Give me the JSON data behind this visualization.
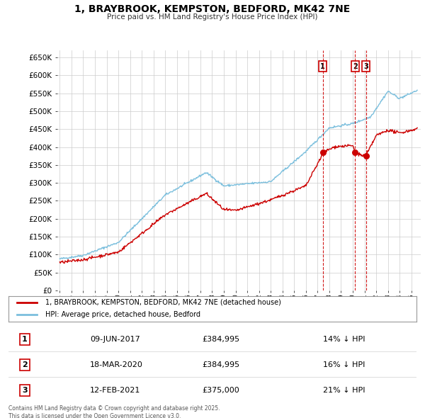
{
  "title": "1, BRAYBROOK, KEMPSTON, BEDFORD, MK42 7NE",
  "subtitle": "Price paid vs. HM Land Registry's House Price Index (HPI)",
  "legend_line1": "1, BRAYBROOK, KEMPSTON, BEDFORD, MK42 7NE (detached house)",
  "legend_line2": "HPI: Average price, detached house, Bedford",
  "transactions": [
    {
      "num": 1,
      "date": "09-JUN-2017",
      "price": "£384,995",
      "hpi": "14% ↓ HPI",
      "x": 2017.44
    },
    {
      "num": 2,
      "date": "18-MAR-2020",
      "price": "£384,995",
      "hpi": "16% ↓ HPI",
      "x": 2020.21
    },
    {
      "num": 3,
      "date": "12-FEB-2021",
      "price": "£375,000",
      "hpi": "21% ↓ HPI",
      "x": 2021.12
    }
  ],
  "transaction_prices": [
    384995,
    384995,
    375000
  ],
  "footnote": "Contains HM Land Registry data © Crown copyright and database right 2025.\nThis data is licensed under the Open Government Licence v3.0.",
  "hpi_color": "#7bbfdd",
  "price_color": "#cc0000",
  "marker_color": "#cc0000",
  "vline_color": "#cc0000",
  "background_chart": "#ffffff",
  "background_fig": "#ffffff",
  "grid_color": "#cccccc",
  "ylim": [
    0,
    670000
  ],
  "yticks": [
    0,
    50000,
    100000,
    150000,
    200000,
    250000,
    300000,
    350000,
    400000,
    450000,
    500000,
    550000,
    600000,
    650000
  ],
  "xmin": 1994.8,
  "xmax": 2025.8,
  "xlabel_rotation": 90
}
